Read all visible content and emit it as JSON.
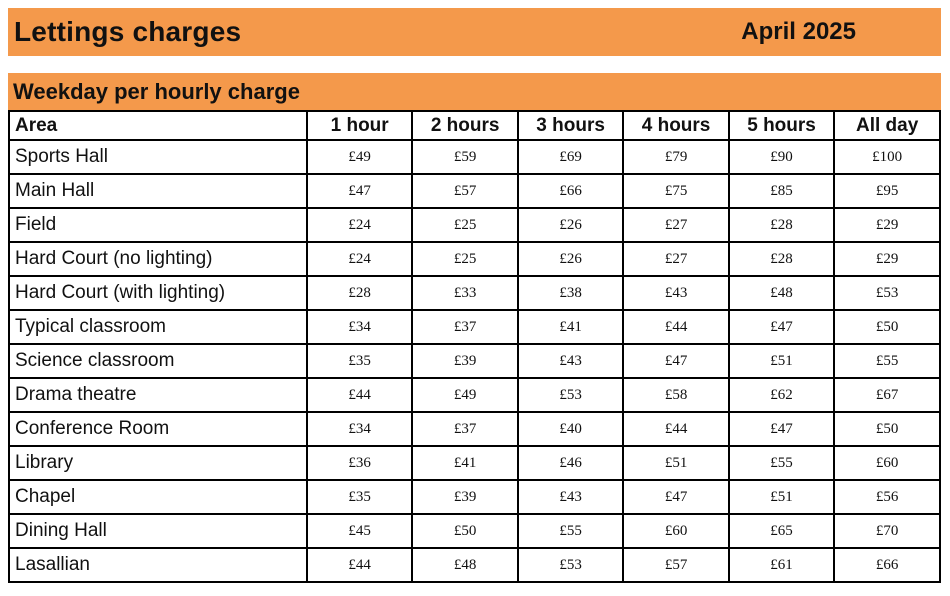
{
  "page": {
    "title": "Lettings charges",
    "date": "April 2025",
    "section_title": "Weekday per hourly charge"
  },
  "table": {
    "columns": [
      "Area",
      "1 hour",
      "2 hours",
      "3 hours",
      "4 hours",
      "5 hours",
      "All day"
    ],
    "rows": [
      {
        "area": "Sports Hall",
        "prices": [
          "£49",
          "£59",
          "£69",
          "£79",
          "£90",
          "£100"
        ]
      },
      {
        "area": "Main Hall",
        "prices": [
          "£47",
          "£57",
          "£66",
          "£75",
          "£85",
          "£95"
        ]
      },
      {
        "area": "Field",
        "prices": [
          "£24",
          "£25",
          "£26",
          "£27",
          "£28",
          "£29"
        ]
      },
      {
        "area": "Hard Court (no lighting)",
        "prices": [
          "£24",
          "£25",
          "£26",
          "£27",
          "£28",
          "£29"
        ]
      },
      {
        "area": "Hard Court (with lighting)",
        "prices": [
          "£28",
          "£33",
          "£38",
          "£43",
          "£48",
          "£53"
        ]
      },
      {
        "area": "Typical classroom",
        "prices": [
          "£34",
          "£37",
          "£41",
          "£44",
          "£47",
          "£50"
        ]
      },
      {
        "area": "Science classroom",
        "prices": [
          "£35",
          "£39",
          "£43",
          "£47",
          "£51",
          "£55"
        ]
      },
      {
        "area": "Drama theatre",
        "prices": [
          "£44",
          "£49",
          "£53",
          "£58",
          "£62",
          "£67"
        ]
      },
      {
        "area": "Conference Room",
        "prices": [
          "£34",
          "£37",
          "£40",
          "£44",
          "£47",
          "£50"
        ]
      },
      {
        "area": "Library",
        "prices": [
          "£36",
          "£41",
          "£46",
          "£51",
          "£55",
          "£60"
        ]
      },
      {
        "area": "Chapel",
        "prices": [
          "£35",
          "£39",
          "£43",
          "£47",
          "£51",
          "£56"
        ]
      },
      {
        "area": "Dining Hall",
        "prices": [
          "£45",
          "£50",
          "£55",
          "£60",
          "£65",
          "£70"
        ]
      },
      {
        "area": "Lasallian",
        "prices": [
          "£44",
          "£48",
          "£53",
          "£57",
          "£61",
          "£66"
        ]
      }
    ]
  },
  "colors": {
    "accent_orange": "#F4994B",
    "border_black": "#000000",
    "text_black": "#111111"
  }
}
